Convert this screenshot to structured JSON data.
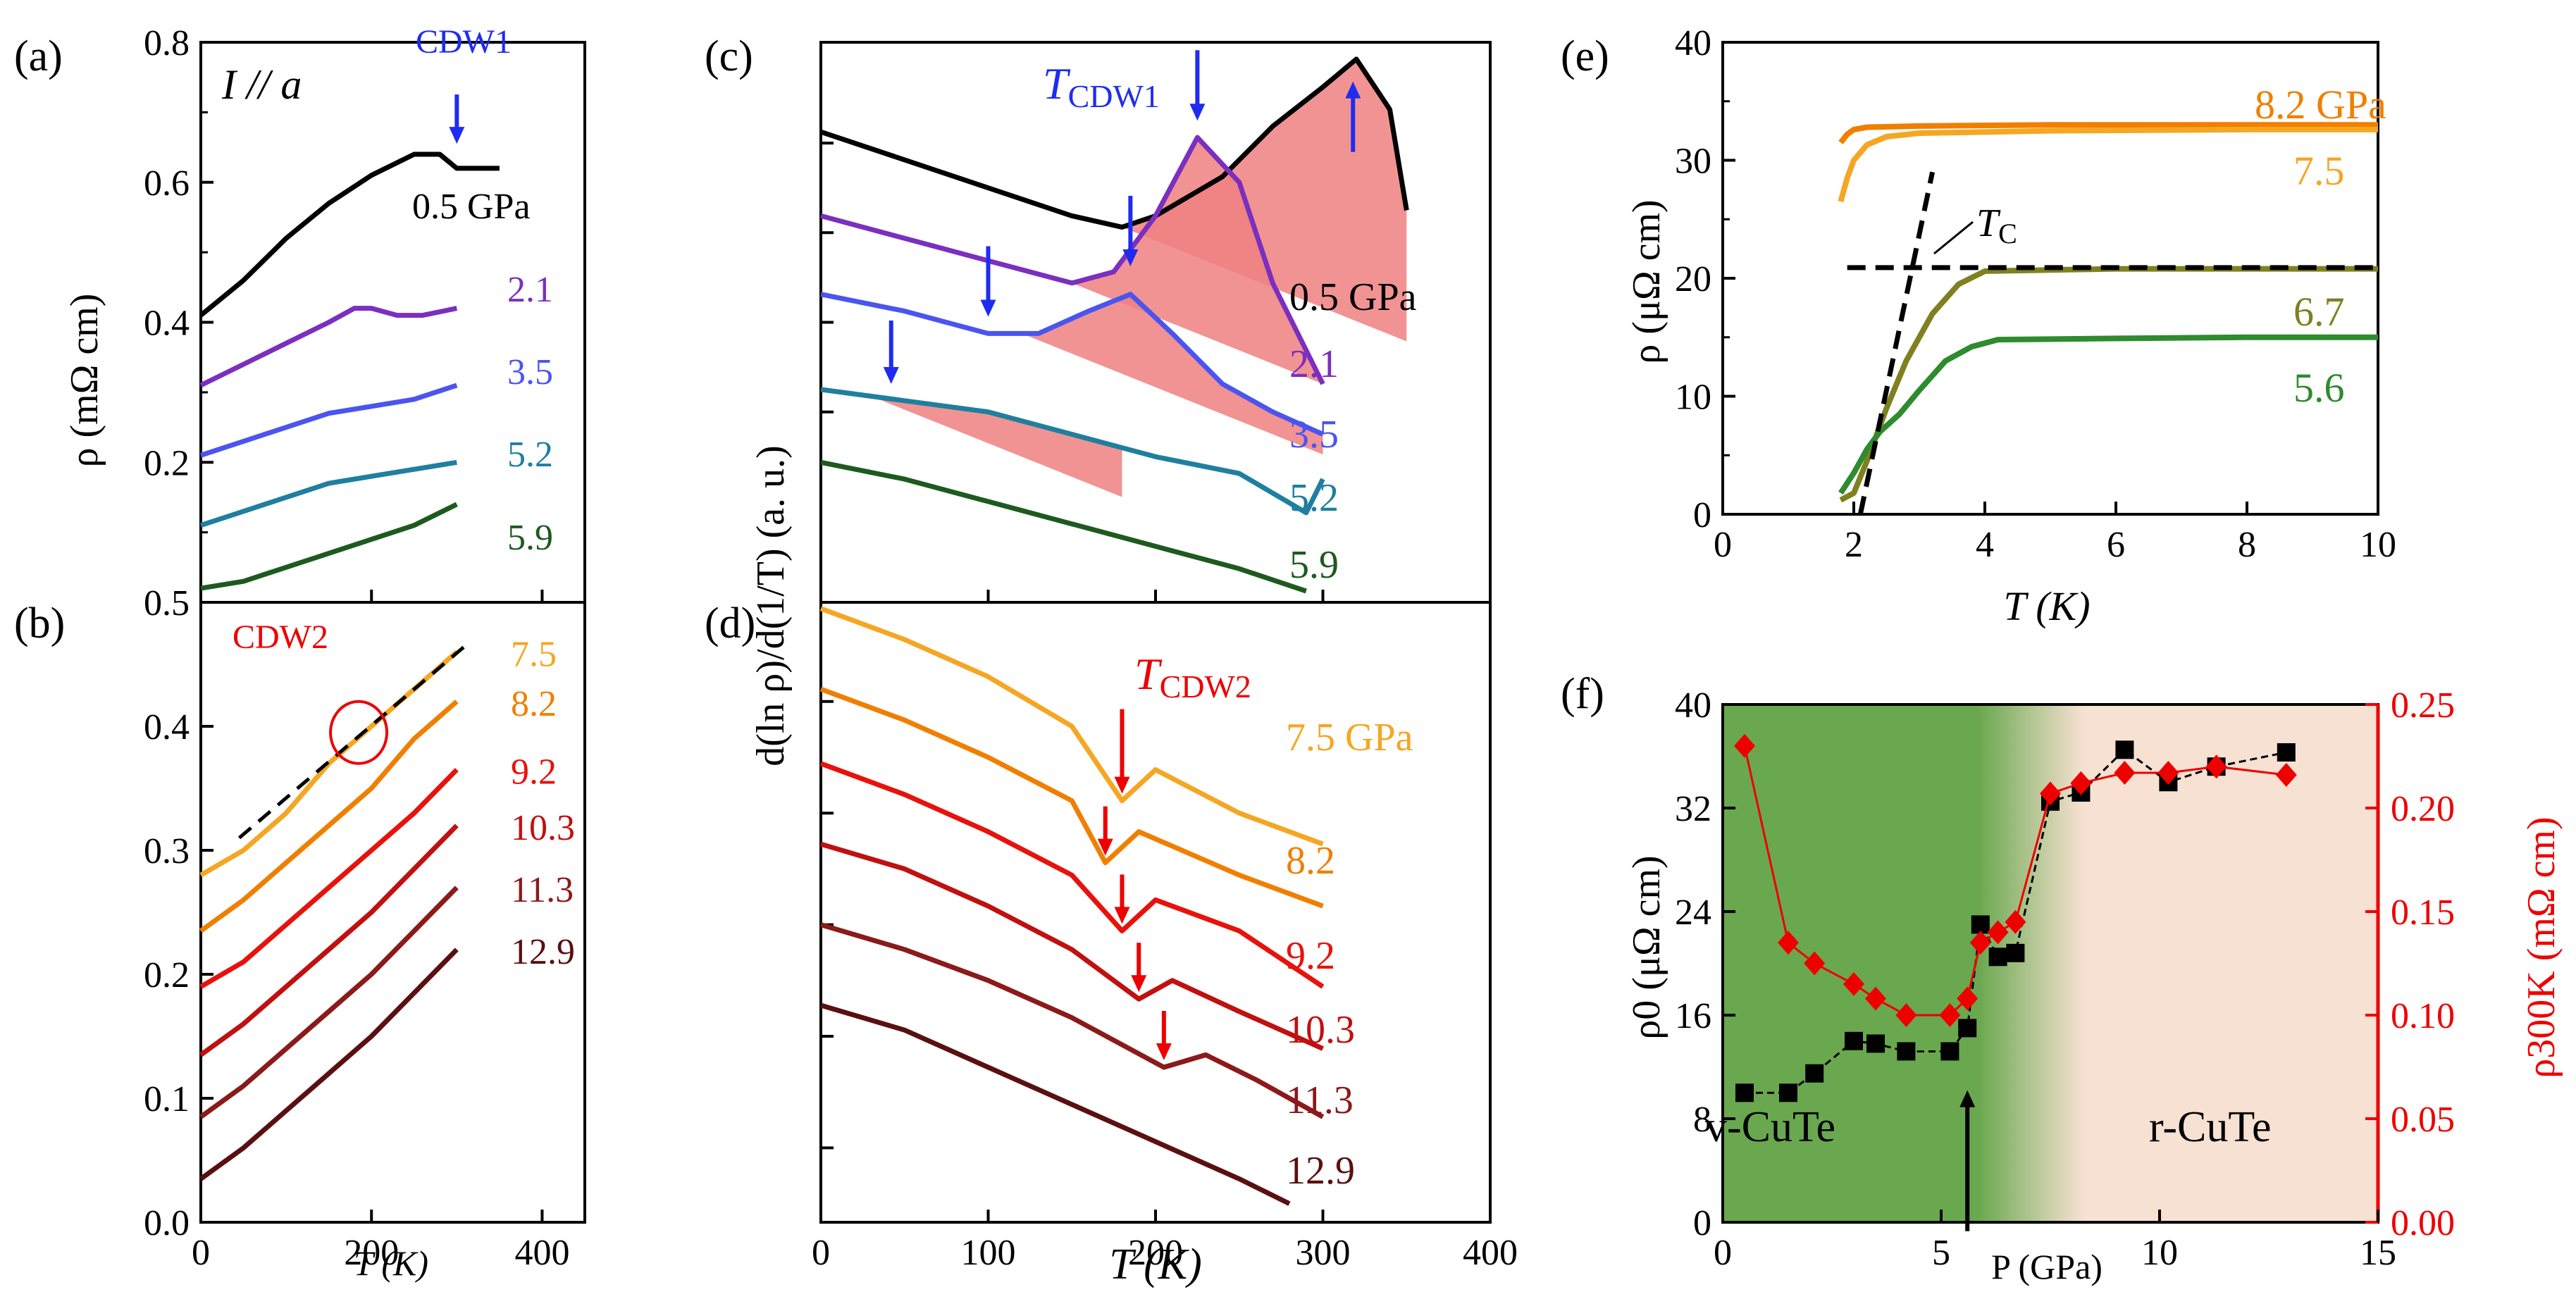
{
  "panel_labels": {
    "a": "(a)",
    "b": "(b)",
    "c": "(c)",
    "d": "(d)",
    "e": "(e)",
    "f": "(f)"
  },
  "annotations": {
    "a_current": "I // a",
    "a_cdw1": "CDW1",
    "b_cdw2": "CDW2",
    "c_tcdw1": "T",
    "c_tcdw1_sub": "CDW1",
    "d_tcdw2": "T",
    "d_tcdw2_sub": "CDW2",
    "e_tc": "T",
    "e_tc_sub": "C",
    "f_left_phase": "v-CuTe",
    "f_right_phase": "r-CuTe"
  },
  "axis_titles": {
    "ab_y": "ρ (mΩ cm)",
    "ab_x": "T (K)",
    "cd_y": "d(ln ρ)/d(1/T) (a. u.)",
    "cd_x": "T (K)",
    "e_y": "ρ (μΩ cm)",
    "e_x": "T (K)",
    "f_y_left": "ρ0 (μΩ cm)",
    "f_y_right": "ρ300K (mΩ cm)",
    "f_x": "P (GPa)"
  },
  "colors": {
    "p0_5": "#000000",
    "p2_1": "#7b2fbf",
    "p3_5": "#4a55f0",
    "p5_2": "#1f7f9f",
    "p5_9": "#1e5a1e",
    "p5_6": "#2e8b2e",
    "p6_7": "#808020",
    "p7_5": "#f5a623",
    "p8_2": "#f07f00",
    "p9_2": "#e8120c",
    "p10_3": "#c01010",
    "p11_3": "#8b1a1a",
    "p12_9": "#5a1010",
    "blue": "#1f2cf0",
    "red": "#ee0000",
    "shade": "#f08080",
    "green_phase": "#6aa84f",
    "peach_phase": "#f7e1d2"
  },
  "chart_data": [
    {
      "panel": "a",
      "type": "line",
      "xlabel": "T (K)",
      "ylabel": "ρ (mΩ cm)",
      "xlim": [
        0,
        450
      ],
      "ylim": [
        0,
        0.8
      ],
      "xticks": [
        "0",
        "200",
        "400"
      ],
      "yticks": [
        "0.2",
        "0.4",
        "0.6",
        "0.8"
      ],
      "series": [
        {
          "name": "0.5 GPa",
          "label": "0.5 GPa",
          "x": [
            0,
            50,
            100,
            150,
            200,
            250,
            280,
            300,
            330,
            350
          ],
          "y": [
            0.41,
            0.46,
            0.52,
            0.57,
            0.61,
            0.64,
            0.64,
            0.62,
            0.62,
            0.62
          ]
        },
        {
          "name": "2.1",
          "label": "2.1",
          "x": [
            0,
            50,
            100,
            150,
            180,
            200,
            230,
            260,
            300
          ],
          "y": [
            0.31,
            0.34,
            0.37,
            0.4,
            0.42,
            0.42,
            0.41,
            0.41,
            0.42
          ]
        },
        {
          "name": "3.5",
          "label": "3.5",
          "x": [
            0,
            50,
            100,
            150,
            200,
            250,
            300
          ],
          "y": [
            0.21,
            0.23,
            0.25,
            0.27,
            0.28,
            0.29,
            0.31
          ]
        },
        {
          "name": "5.2",
          "label": "5.2",
          "x": [
            0,
            50,
            100,
            150,
            200,
            250,
            300
          ],
          "y": [
            0.11,
            0.13,
            0.15,
            0.17,
            0.18,
            0.19,
            0.2
          ]
        },
        {
          "name": "5.9",
          "label": "5.9",
          "x": [
            0,
            50,
            100,
            150,
            200,
            250,
            300
          ],
          "y": [
            0.02,
            0.03,
            0.05,
            0.07,
            0.09,
            0.11,
            0.14
          ]
        }
      ]
    },
    {
      "panel": "b",
      "type": "line",
      "xlabel": "T (K)",
      "ylabel": "ρ (mΩ cm)",
      "xlim": [
        0,
        450
      ],
      "ylim": [
        0,
        0.5
      ],
      "xticks": [
        "0",
        "200",
        "400"
      ],
      "yticks": [
        "0.0",
        "0.1",
        "0.2",
        "0.3",
        "0.4",
        "0.5"
      ],
      "series": [
        {
          "name": "7.5",
          "label": "7.5",
          "x": [
            0,
            50,
            100,
            150,
            200,
            250,
            300
          ],
          "y": [
            0.28,
            0.3,
            0.33,
            0.37,
            0.4,
            0.43,
            0.46
          ]
        },
        {
          "name": "8.2",
          "label": "8.2",
          "x": [
            0,
            50,
            100,
            150,
            200,
            250,
            300
          ],
          "y": [
            0.235,
            0.26,
            0.29,
            0.32,
            0.35,
            0.39,
            0.42
          ]
        },
        {
          "name": "9.2",
          "label": "9.2",
          "x": [
            0,
            50,
            100,
            150,
            200,
            250,
            300
          ],
          "y": [
            0.19,
            0.21,
            0.24,
            0.27,
            0.3,
            0.33,
            0.365
          ]
        },
        {
          "name": "10.3",
          "label": "10.3",
          "x": [
            0,
            50,
            100,
            150,
            200,
            250,
            300
          ],
          "y": [
            0.135,
            0.16,
            0.19,
            0.22,
            0.25,
            0.285,
            0.32
          ]
        },
        {
          "name": "11.3",
          "label": "11.3",
          "x": [
            0,
            50,
            100,
            150,
            200,
            250,
            300
          ],
          "y": [
            0.085,
            0.11,
            0.14,
            0.17,
            0.2,
            0.235,
            0.27
          ]
        },
        {
          "name": "12.9",
          "label": "12.9",
          "x": [
            0,
            50,
            100,
            150,
            200,
            250,
            300
          ],
          "y": [
            0.035,
            0.06,
            0.09,
            0.12,
            0.15,
            0.185,
            0.22
          ]
        }
      ]
    },
    {
      "panel": "c",
      "type": "line",
      "xlabel": "T (K)",
      "ylabel": "d(ln ρ)/d(1/T) (a. u.)",
      "xlim": [
        0,
        400
      ],
      "ylim": [
        0,
        10
      ],
      "xticks": [],
      "yticks": [],
      "arrows_T": [
        225,
        185,
        100,
        42,
        318
      ],
      "series": [
        {
          "name": "0.5 GPa",
          "label": "0.5 GPa",
          "x": [
            0,
            50,
            100,
            150,
            180,
            200,
            240,
            270,
            300,
            320,
            340,
            350
          ],
          "y": [
            8.4,
            7.9,
            7.4,
            6.9,
            6.7,
            6.9,
            7.6,
            8.5,
            9.2,
            9.7,
            8.8,
            7.0
          ]
        },
        {
          "name": "2.1",
          "label": "2.1",
          "x": [
            0,
            50,
            100,
            150,
            175,
            200,
            225,
            250,
            270,
            300
          ],
          "y": [
            6.9,
            6.5,
            6.1,
            5.7,
            5.9,
            6.9,
            8.3,
            7.5,
            5.7,
            3.9
          ]
        },
        {
          "name": "3.5",
          "label": "3.5",
          "x": [
            0,
            50,
            100,
            130,
            160,
            185,
            210,
            240,
            270,
            300
          ],
          "y": [
            5.5,
            5.2,
            4.8,
            4.8,
            5.2,
            5.5,
            4.8,
            3.9,
            3.4,
            3.0
          ]
        },
        {
          "name": "5.2",
          "label": "5.2",
          "x": [
            0,
            50,
            100,
            150,
            200,
            250,
            290,
            300
          ],
          "y": [
            3.8,
            3.6,
            3.4,
            3.0,
            2.6,
            2.3,
            1.6,
            2.2
          ]
        },
        {
          "name": "5.9",
          "label": "5.9",
          "x": [
            0,
            50,
            100,
            150,
            200,
            250,
            290
          ],
          "y": [
            2.5,
            2.2,
            1.8,
            1.4,
            1.0,
            0.6,
            0.2
          ]
        }
      ]
    },
    {
      "panel": "d",
      "type": "line",
      "xlabel": "T (K)",
      "ylabel": "d(ln ρ)/d(1/T) (a. u.)",
      "xlim": [
        0,
        400
      ],
      "ylim": [
        0,
        10
      ],
      "xticks": [
        "0",
        "100",
        "200",
        "300",
        "400"
      ],
      "yticks": [],
      "arrows_T": [
        180,
        170,
        180,
        190,
        205
      ],
      "series": [
        {
          "name": "7.5 GPa",
          "label": "7.5 GPa",
          "x": [
            0,
            50,
            100,
            150,
            180,
            200,
            250,
            300
          ],
          "y": [
            9.9,
            9.4,
            8.8,
            8.0,
            6.8,
            7.3,
            6.6,
            6.1
          ]
        },
        {
          "name": "8.2",
          "label": "8.2",
          "x": [
            0,
            50,
            100,
            150,
            170,
            190,
            250,
            300
          ],
          "y": [
            8.6,
            8.1,
            7.5,
            6.8,
            5.8,
            6.3,
            5.6,
            5.1
          ]
        },
        {
          "name": "9.2",
          "label": "9.2",
          "x": [
            0,
            50,
            100,
            150,
            180,
            200,
            250,
            300
          ],
          "y": [
            7.4,
            6.9,
            6.3,
            5.6,
            4.7,
            5.2,
            4.7,
            3.8
          ]
        },
        {
          "name": "10.3",
          "label": "10.3",
          "x": [
            0,
            50,
            100,
            150,
            190,
            210,
            250,
            300
          ],
          "y": [
            6.1,
            5.7,
            5.1,
            4.4,
            3.6,
            3.9,
            3.4,
            2.8
          ]
        },
        {
          "name": "11.3",
          "label": "11.3",
          "x": [
            0,
            50,
            100,
            150,
            205,
            230,
            260,
            300
          ],
          "y": [
            4.8,
            4.4,
            3.9,
            3.3,
            2.5,
            2.7,
            2.3,
            1.7
          ]
        },
        {
          "name": "12.9",
          "label": "12.9",
          "x": [
            0,
            50,
            100,
            150,
            200,
            250,
            280
          ],
          "y": [
            3.5,
            3.1,
            2.5,
            1.9,
            1.3,
            0.7,
            0.3
          ]
        }
      ]
    },
    {
      "panel": "e",
      "type": "line",
      "xlabel": "T (K)",
      "ylabel": "ρ (μΩ cm)",
      "xlim": [
        0,
        10
      ],
      "ylim": [
        0,
        40
      ],
      "xticks": [
        "0",
        "2",
        "4",
        "6",
        "8",
        "10"
      ],
      "yticks": [
        "0",
        "10",
        "20",
        "30",
        "40"
      ],
      "series": [
        {
          "name": "8.2 GPa",
          "label": "8.2 GPa",
          "x": [
            1.8,
            1.9,
            2.0,
            2.2,
            3,
            5,
            8,
            10
          ],
          "y": [
            31.5,
            32.2,
            32.6,
            32.8,
            32.9,
            33,
            33,
            33
          ]
        },
        {
          "name": "7.5",
          "label": "7.5",
          "x": [
            1.8,
            1.9,
            2.0,
            2.2,
            2.5,
            3,
            5,
            8,
            10
          ],
          "y": [
            26.5,
            28.5,
            30,
            31.3,
            32,
            32.3,
            32.5,
            32.6,
            32.6
          ]
        },
        {
          "name": "6.7",
          "label": "6.7",
          "x": [
            1.8,
            2.0,
            2.2,
            2.5,
            2.8,
            3.2,
            3.6,
            4,
            6,
            8,
            10
          ],
          "y": [
            1.2,
            1.8,
            4.5,
            9,
            13,
            17,
            19.5,
            20.6,
            20.8,
            20.8,
            20.8
          ]
        },
        {
          "name": "5.6",
          "label": "5.6",
          "x": [
            1.8,
            2.0,
            2.2,
            2.4,
            2.7,
            3,
            3.4,
            3.8,
            4.2,
            6,
            8,
            10
          ],
          "y": [
            1.8,
            3.5,
            5.5,
            7,
            8.5,
            10.5,
            13,
            14.2,
            14.8,
            14.9,
            15,
            15
          ]
        }
      ],
      "fit_lines": [
        {
          "x": [
            2.1,
            3.2
          ],
          "y": [
            0,
            29
          ]
        },
        {
          "x": [
            1.9,
            10
          ],
          "y": [
            20.9,
            20.9
          ]
        }
      ]
    },
    {
      "panel": "f",
      "type": "scatter",
      "xlabel": "P (GPa)",
      "ylabel": "ρ0 (μΩ cm)",
      "ylabel_right": "ρ300K (mΩ cm)",
      "xlim": [
        0,
        15
      ],
      "ylim": [
        0,
        40
      ],
      "ylim_right": [
        0,
        0.25
      ],
      "xticks": [
        "0",
        "5",
        "10",
        "15"
      ],
      "yticks": [
        "0",
        "8",
        "16",
        "24",
        "32",
        "40"
      ],
      "yticks_right": [
        "0.00",
        "0.05",
        "0.10",
        "0.15",
        "0.20",
        "0.25"
      ],
      "boundary_P": 5.6,
      "series": [
        {
          "name": "ρ0",
          "axis": "left",
          "marker": "square",
          "P": [
            0.5,
            1.5,
            2.1,
            3.0,
            3.5,
            4.2,
            5.2,
            5.6,
            5.9,
            6.3,
            6.7,
            7.5,
            8.2,
            9.2,
            10.2,
            11.3,
            12.9
          ],
          "values": [
            10,
            10,
            11.5,
            14,
            13.8,
            13.2,
            13.2,
            15,
            23,
            20.5,
            20.8,
            32.5,
            33.2,
            36.5,
            34,
            35.2,
            36.3
          ]
        },
        {
          "name": "ρ300K",
          "axis": "right",
          "marker": "diamond",
          "P": [
            0.5,
            1.5,
            2.1,
            3.0,
            3.5,
            4.2,
            5.2,
            5.6,
            5.9,
            6.3,
            6.7,
            7.5,
            8.2,
            9.2,
            10.2,
            11.3,
            12.9
          ],
          "values": [
            0.23,
            0.135,
            0.125,
            0.115,
            0.108,
            0.1,
            0.1,
            0.108,
            0.135,
            0.14,
            0.145,
            0.207,
            0.212,
            0.217,
            0.217,
            0.22,
            0.216
          ]
        }
      ]
    }
  ]
}
